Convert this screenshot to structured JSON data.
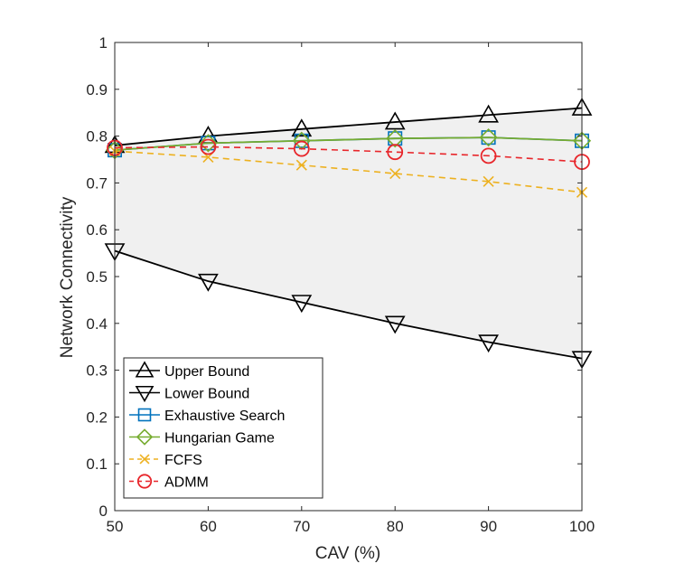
{
  "chart_data": {
    "type": "line",
    "xlabel": "CAV (%)",
    "ylabel": "Network Connectivity",
    "xlim": [
      50,
      100
    ],
    "ylim": [
      0,
      1
    ],
    "xticks": [
      "50",
      "60",
      "70",
      "80",
      "90",
      "100"
    ],
    "yticks": [
      "0",
      "0.1",
      "0.2",
      "0.3",
      "0.4",
      "0.5",
      "0.6",
      "0.7",
      "0.8",
      "0.9",
      "1"
    ],
    "x": [
      50,
      60,
      70,
      80,
      90,
      100
    ],
    "shaded_region": {
      "between": [
        "Upper Bound",
        "Lower Bound"
      ],
      "color": "#f0f0f0"
    },
    "legend_position": "bottom-left",
    "series": [
      {
        "name": "Upper Bound",
        "values": [
          0.78,
          0.8,
          0.815,
          0.83,
          0.845,
          0.86
        ],
        "color": "#000000",
        "line": "solid",
        "marker": "triangle-up"
      },
      {
        "name": "Lower Bound",
        "values": [
          0.555,
          0.49,
          0.445,
          0.4,
          0.36,
          0.325
        ],
        "color": "#000000",
        "line": "solid",
        "marker": "triangle-down"
      },
      {
        "name": "Exhaustive Search",
        "values": [
          0.77,
          0.785,
          0.79,
          0.795,
          0.797,
          0.79
        ],
        "color": "#0072BD",
        "line": "solid",
        "marker": "square"
      },
      {
        "name": "Hungarian Game",
        "values": [
          0.77,
          0.785,
          0.79,
          0.795,
          0.797,
          0.79
        ],
        "color": "#77AC30",
        "line": "solid",
        "marker": "diamond"
      },
      {
        "name": "FCFS",
        "values": [
          0.768,
          0.755,
          0.738,
          0.72,
          0.703,
          0.68
        ],
        "color": "#EDB120",
        "line": "dashed",
        "marker": "x"
      },
      {
        "name": "ADMM",
        "values": [
          0.775,
          0.777,
          0.773,
          0.766,
          0.758,
          0.745
        ],
        "color": "#E8262B",
        "line": "dashed",
        "marker": "circle"
      }
    ]
  }
}
